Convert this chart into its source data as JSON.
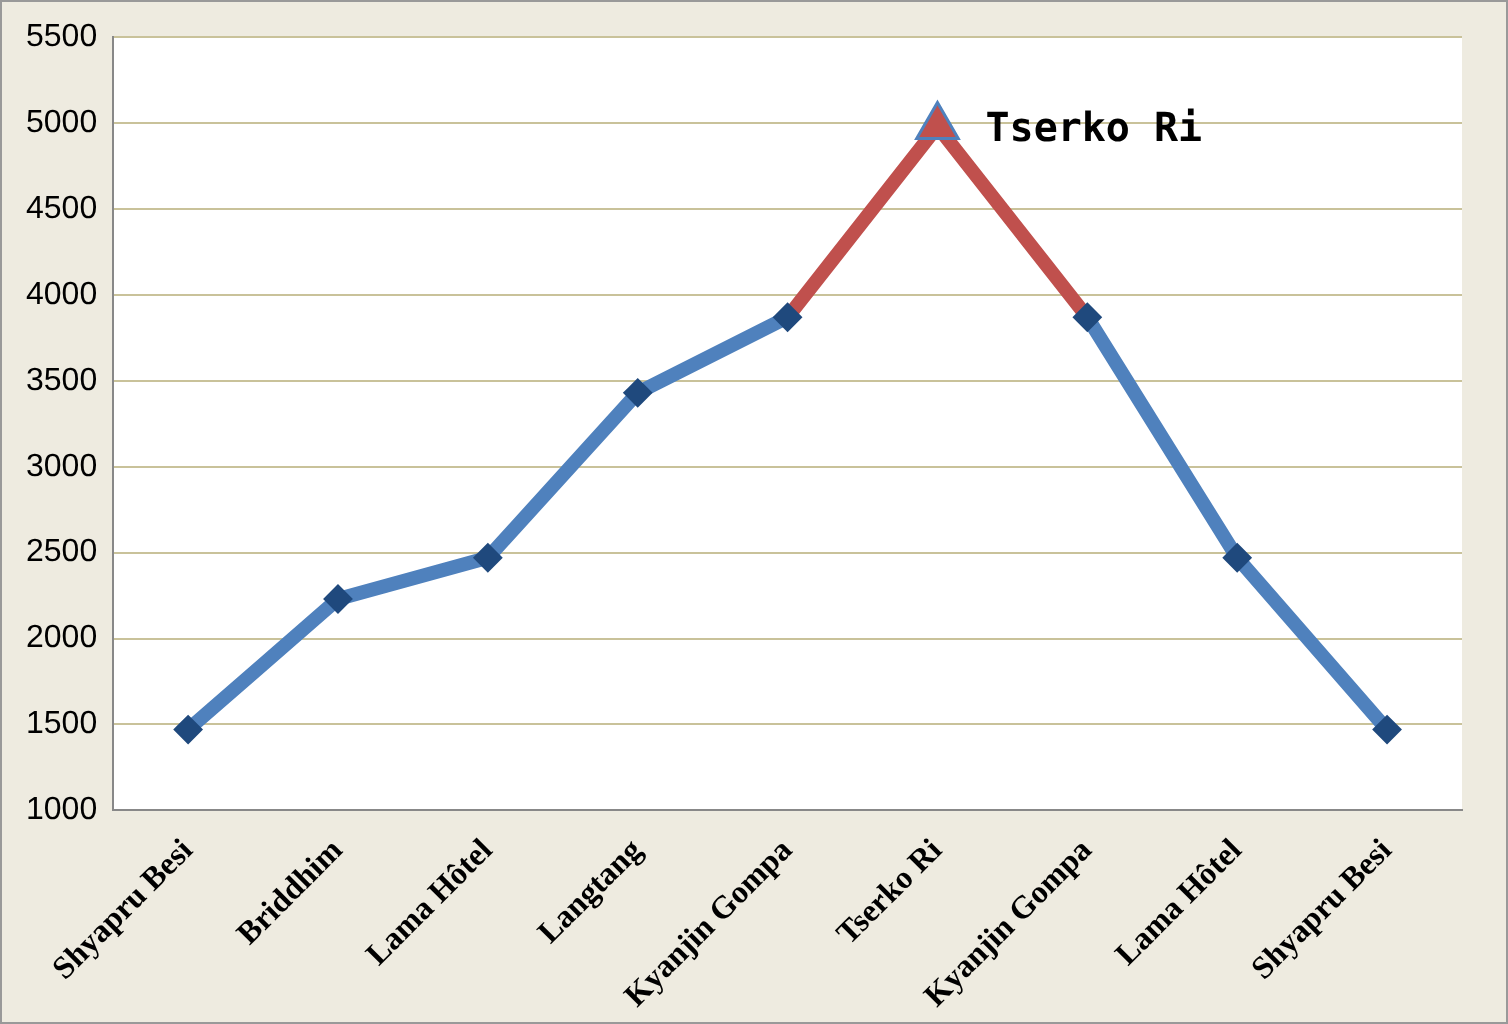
{
  "chart_data": {
    "type": "line",
    "categories": [
      "Shyapru Besi",
      "Briddhim",
      "Lama Hôtel",
      "Langtang",
      "Kyanjin Gompa",
      "Tserko Ri",
      "Kyanjin Gompa",
      "Lama Hôtel",
      "Shyapru Besi"
    ],
    "series": [
      {
        "color": "#4f81bd",
        "marker": "diamond",
        "values": [
          1470,
          2230,
          2470,
          3430,
          3870,
          null,
          3870,
          2470,
          1470
        ]
      },
      {
        "color": "#c0504d",
        "marker": "none",
        "values": [
          null,
          null,
          null,
          null,
          3870,
          4980,
          3870,
          null,
          null
        ]
      },
      {
        "type": "scatter",
        "color": "#c0504d",
        "marker": "triangle",
        "values": [
          null,
          null,
          null,
          null,
          null,
          4980,
          null,
          null,
          null
        ]
      }
    ],
    "ylim": [
      1000,
      5500
    ],
    "yticks": [
      1000,
      1500,
      2000,
      2500,
      3000,
      3500,
      4000,
      4500,
      5000,
      5500
    ],
    "grid": "y",
    "legend": false,
    "annotations": [
      {
        "text": "Tserko Ri",
        "x": "Tserko Ri",
        "y": 4980
      }
    ]
  }
}
